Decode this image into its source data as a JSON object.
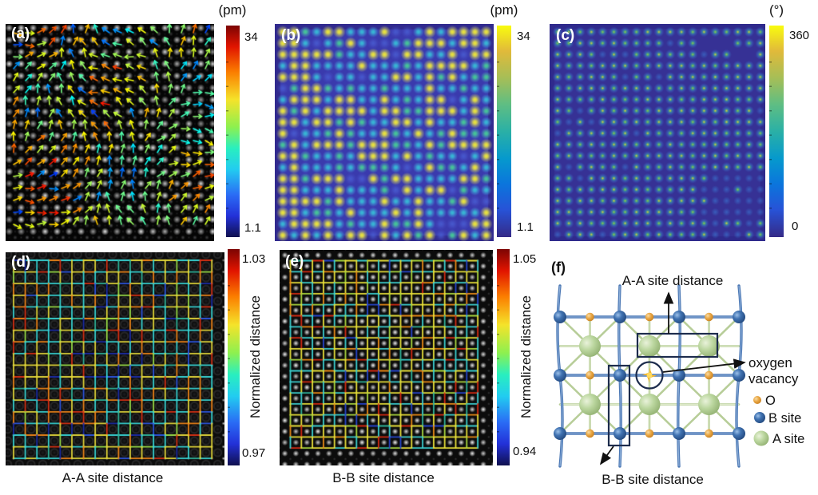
{
  "panels": {
    "a": {
      "letter": "(a)",
      "colorbar": {
        "title": "(pm)",
        "max": "34",
        "min": "1.1",
        "colormap": "jet"
      }
    },
    "b": {
      "letter": "(b)",
      "colorbar": {
        "title": "(pm)",
        "max": "34",
        "min": "1.1",
        "colormap": "parula"
      }
    },
    "c": {
      "letter": "(c)",
      "colorbar": {
        "title": "(°)",
        "max": "360",
        "min": "0",
        "colormap": "parula"
      }
    },
    "d": {
      "letter": "(d)",
      "colorbar": {
        "max": "1.03",
        "min": "0.97",
        "label": "Normalized distance",
        "colormap": "jet"
      },
      "caption": "A-A site distance"
    },
    "e": {
      "letter": "(e)",
      "colorbar": {
        "max": "1.05",
        "min": "0.94",
        "label": "Normalized distance",
        "colormap": "jet"
      },
      "caption": "B-B site distance"
    },
    "f": {
      "letter": "(f)",
      "annotations": {
        "aa": "A-A site distance",
        "oxygen_line1": "oxygen",
        "oxygen_line2": "vacancy",
        "bb": "B-B site distance"
      },
      "legend": [
        {
          "label": "O",
          "color": "#e8a33d"
        },
        {
          "label": "B site",
          "color": "#2e5d9e"
        },
        {
          "label": "A site",
          "color": "#b5d39b"
        }
      ],
      "vacancy_color": "#f3b52b",
      "annotation_color": "#1d2c4d"
    }
  },
  "colormap_colors": {
    "jet_top_to_bottom": [
      "#7c0403",
      "#e11400",
      "#fb7e00",
      "#f5e32a",
      "#8df04f",
      "#29efbf",
      "#22ccf0",
      "#2a6cf5",
      "#2331d8",
      "#10104f"
    ],
    "parula_top_to_bottom": [
      "#f9fb0e",
      "#e1ba3a",
      "#a5be57",
      "#60be82",
      "#2ab0a6",
      "#0699cd",
      "#0b75dc",
      "#2753d7",
      "#352a87"
    ]
  }
}
